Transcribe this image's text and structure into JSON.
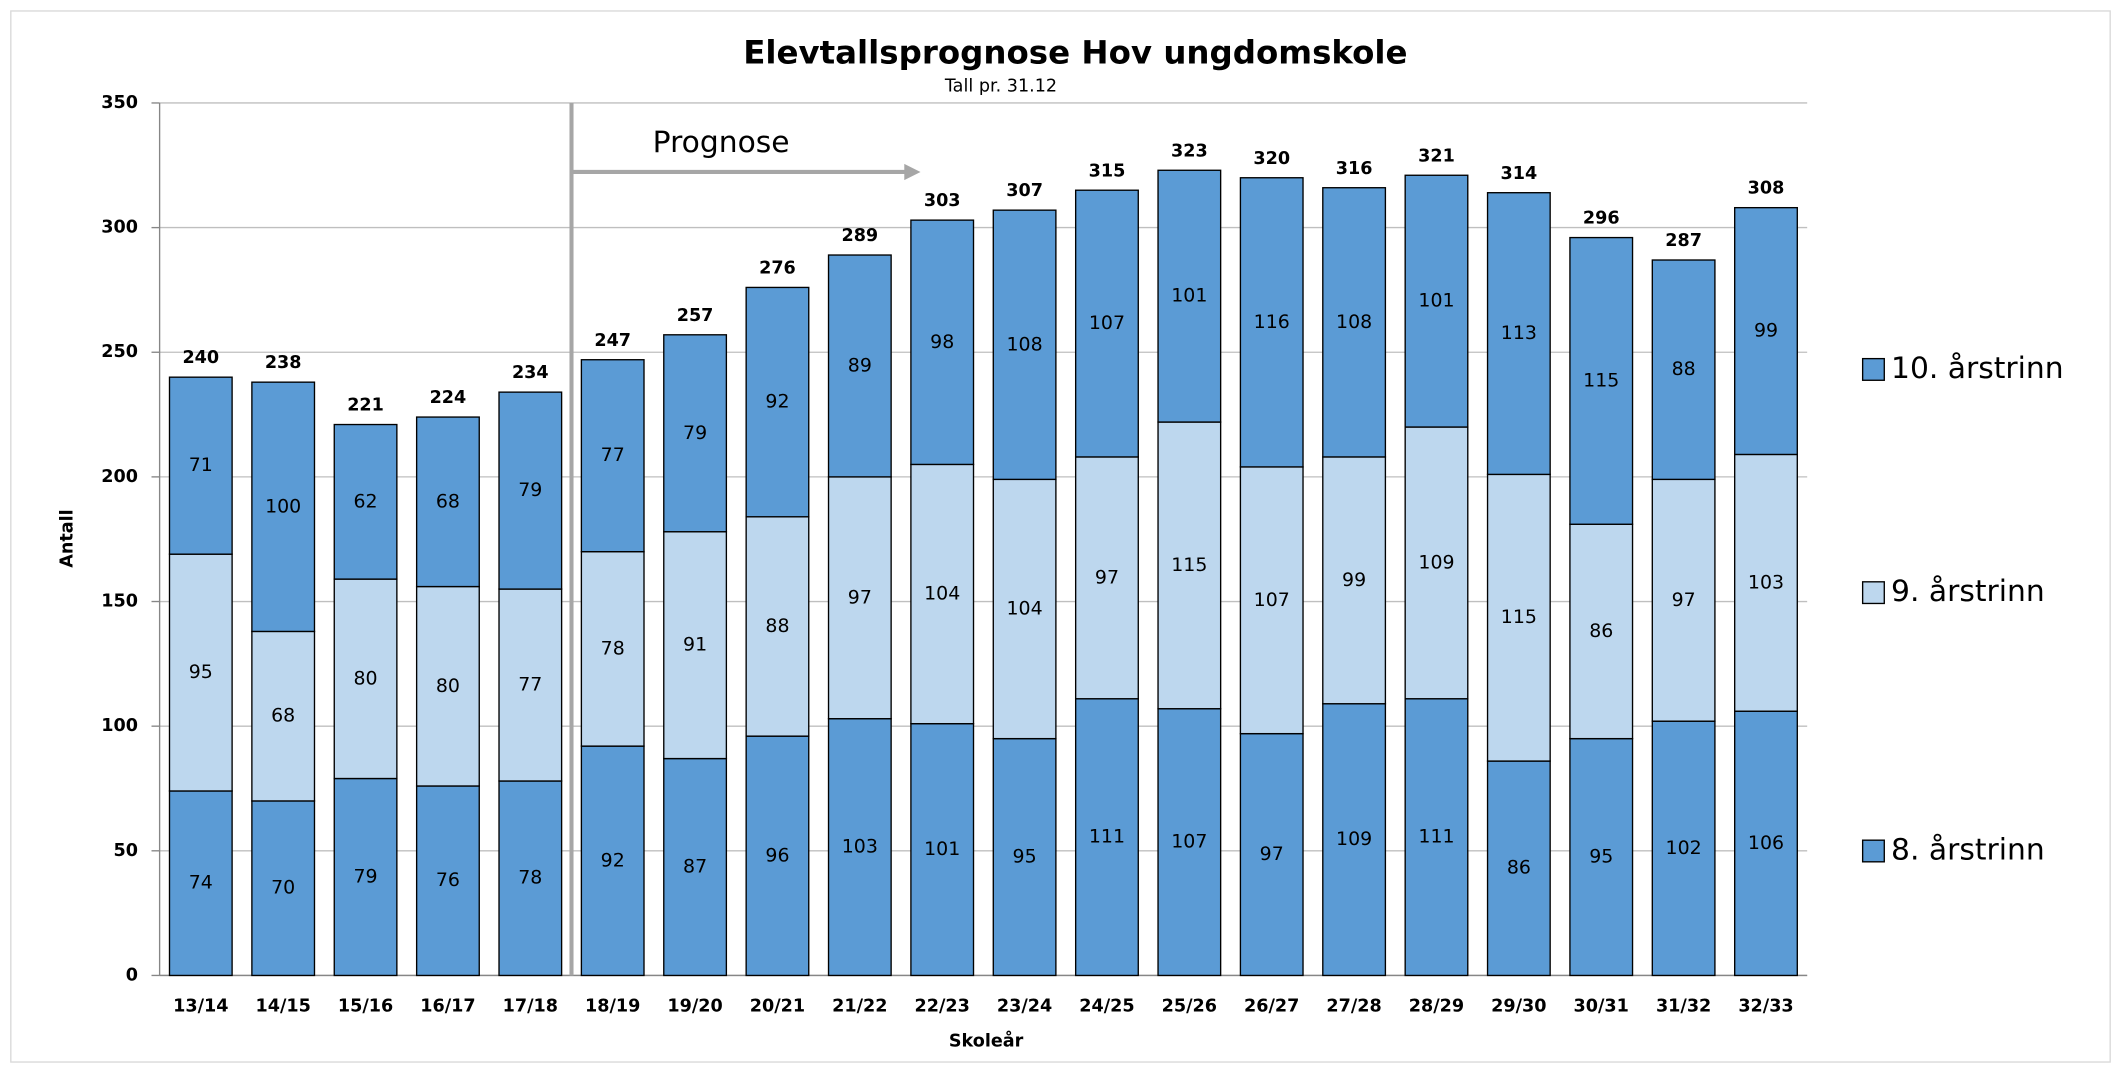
{
  "chart_data": {
    "type": "stacked_bar",
    "title": "Elevtallsprognose Hov ungdomskole",
    "subtitle": "Tall pr. 31.12",
    "x_label": "Skoleår",
    "y_label": "Antall",
    "annotation": "Prognose",
    "categories": [
      "13/14",
      "14/15",
      "15/16",
      "16/17",
      "17/18",
      "18/19",
      "19/20",
      "20/21",
      "21/22",
      "22/23",
      "23/24",
      "24/25",
      "25/26",
      "26/27",
      "27/28",
      "28/29",
      "29/30",
      "30/31",
      "31/32",
      "32/33"
    ],
    "series": [
      {
        "name": "8. årstrinn",
        "color": "#5b9bd5",
        "values": [
          74,
          70,
          79,
          76,
          78,
          92,
          87,
          96,
          103,
          101,
          95,
          111,
          107,
          97,
          109,
          111,
          86,
          95,
          102,
          106
        ]
      },
      {
        "name": "9. årstrinn",
        "color": "#bdd7ee",
        "values": [
          95,
          68,
          80,
          80,
          77,
          78,
          91,
          88,
          97,
          104,
          104,
          97,
          115,
          107,
          99,
          109,
          115,
          86,
          97,
          103
        ]
      },
      {
        "name": "10. årstrinn",
        "color": "#5b9bd5",
        "values": [
          71,
          100,
          62,
          68,
          79,
          77,
          79,
          92,
          89,
          98,
          108,
          107,
          101,
          116,
          108,
          101,
          113,
          115,
          88,
          99
        ]
      }
    ],
    "totals": [
      240,
      238,
      221,
      224,
      234,
      247,
      257,
      276,
      289,
      303,
      307,
      315,
      323,
      320,
      316,
      321,
      314,
      296,
      287,
      308
    ],
    "ylim": [
      0,
      350
    ],
    "yticks": [
      0,
      50,
      100,
      150,
      200,
      250,
      300,
      350
    ],
    "grid": true,
    "legend": "right"
  }
}
